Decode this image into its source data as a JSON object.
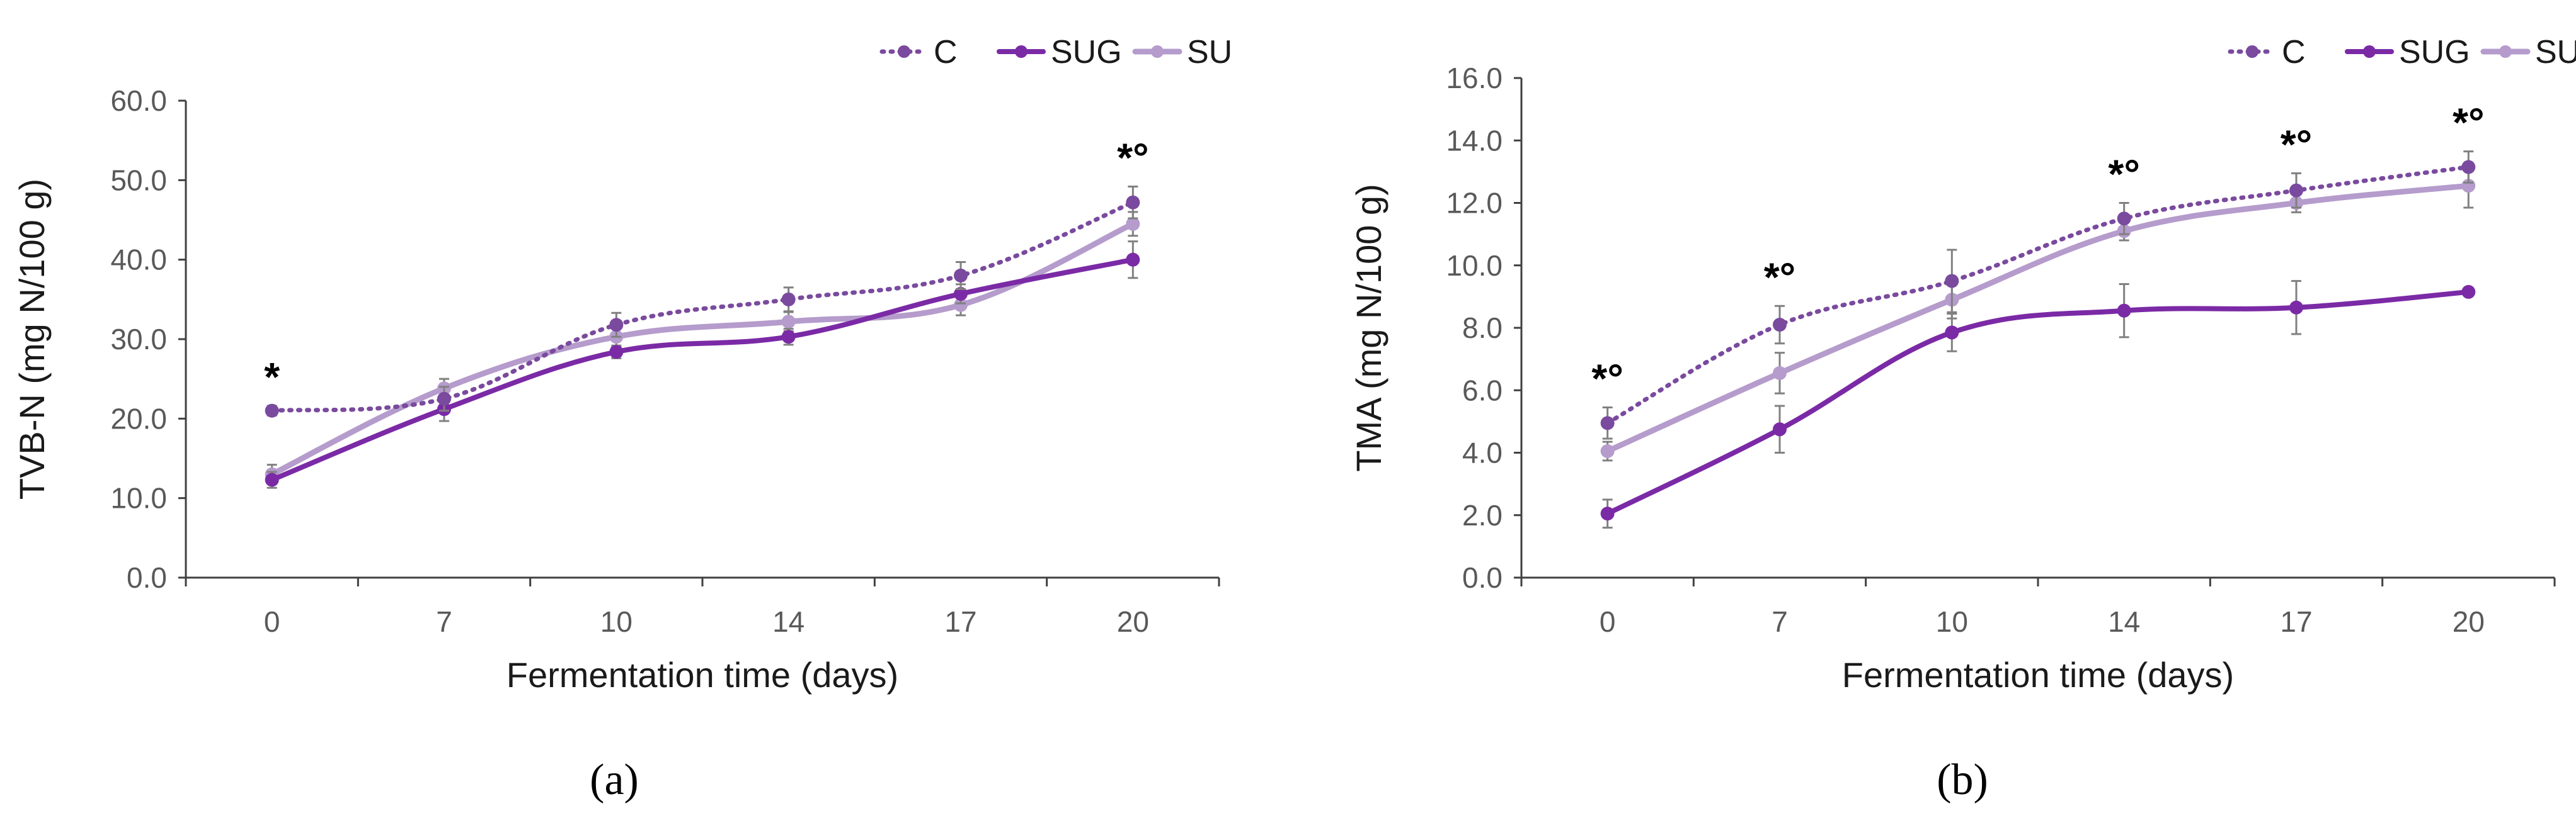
{
  "figure": {
    "colors": {
      "C": "#7a4a9e",
      "SUG": "#7b2aa6",
      "SU": "#b59ccc",
      "axis": "#404040",
      "error": "#808080"
    }
  },
  "chart_data": [
    {
      "type": "line",
      "panel_label": "(a)",
      "label_letter": "a",
      "xlabel": "Fermentation time (days)",
      "ylabel": "TVB-N (mg N/100 g)",
      "categories": [
        "0",
        "7",
        "10",
        "14",
        "17",
        "20"
      ],
      "ylim": [
        0,
        60
      ],
      "yticks": [
        "0.0",
        "10.0",
        "20.0",
        "30.0",
        "40.0",
        "50.0",
        "60.0"
      ],
      "legend": [
        "C",
        "SUG",
        "SU"
      ],
      "series": [
        {
          "name": "C",
          "style": "dotted",
          "values": [
            21.0,
            22.5,
            31.8,
            35.0,
            38.0,
            47.2
          ],
          "errors": [
            0.6,
            1.5,
            1.5,
            1.5,
            1.7,
            2.0
          ]
        },
        {
          "name": "SUG",
          "style": "solid",
          "values": [
            12.3,
            21.2,
            28.4,
            30.3,
            35.7,
            40.0
          ],
          "errors": [
            1.0,
            1.5,
            0.8,
            1.0,
            1.2,
            2.3
          ]
        },
        {
          "name": "SU",
          "style": "solid-light",
          "values": [
            13.0,
            23.8,
            30.3,
            32.2,
            34.3,
            44.5
          ],
          "errors": [
            1.2,
            1.2,
            1.2,
            1.2,
            1.3,
            1.5
          ]
        }
      ],
      "significance": [
        {
          "index": 0,
          "text": "*"
        },
        {
          "index": 5,
          "text": "*°"
        }
      ]
    },
    {
      "type": "line",
      "panel_label": "(b)",
      "label_letter": "b",
      "xlabel": "Fermentation time (days)",
      "ylabel": "TMA (mg N/100 g)",
      "categories": [
        "0",
        "7",
        "10",
        "14",
        "17",
        "20"
      ],
      "ylim": [
        0,
        16
      ],
      "yticks": [
        "0.0",
        "2.0",
        "4.0",
        "6.0",
        "8.0",
        "10.0",
        "12.0",
        "14.0",
        "16.0"
      ],
      "legend": [
        "C",
        "SUG",
        "SU"
      ],
      "series": [
        {
          "name": "C",
          "style": "dotted",
          "values": [
            4.95,
            8.1,
            9.5,
            11.5,
            12.4,
            13.15
          ],
          "errors": [
            0.5,
            0.6,
            1.0,
            0.5,
            0.55,
            0.5
          ]
        },
        {
          "name": "SUG",
          "style": "solid",
          "values": [
            2.05,
            4.75,
            7.85,
            8.55,
            8.65,
            9.15
          ],
          "errors": [
            0.45,
            0.75,
            0.6,
            0.85,
            0.85,
            0.1
          ]
        },
        {
          "name": "SU",
          "style": "solid-light",
          "values": [
            4.05,
            6.55,
            8.9,
            11.1,
            12.0,
            12.55
          ],
          "errors": [
            0.3,
            0.65,
            0.6,
            0.3,
            0.3,
            0.7
          ]
        }
      ],
      "significance": [
        {
          "index": 0,
          "text": "*°"
        },
        {
          "index": 1,
          "text": "*°"
        },
        {
          "index": 3,
          "text": "*°"
        },
        {
          "index": 4,
          "text": "*°"
        },
        {
          "index": 5,
          "text": "*°"
        }
      ]
    }
  ]
}
